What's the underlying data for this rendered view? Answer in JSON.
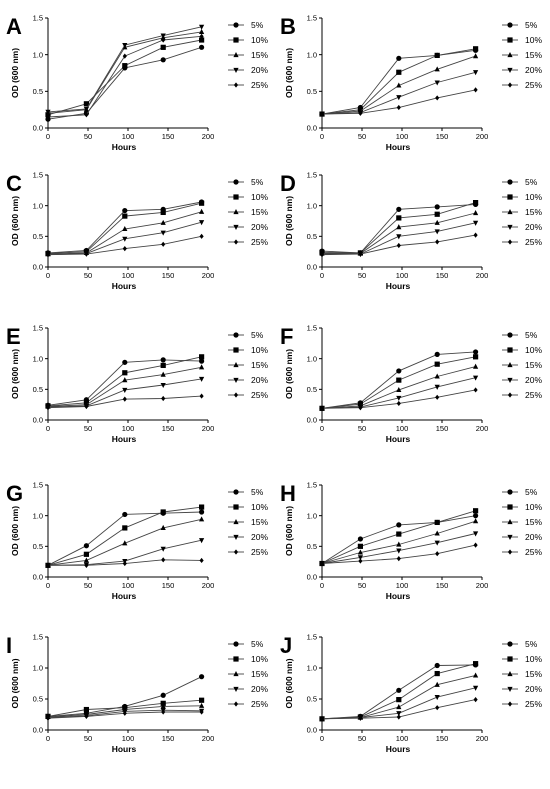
{
  "chart_data": [
    {
      "panel": "A",
      "type": "line",
      "xlabel": "Hours",
      "ylabel": "OD (600 nm)",
      "xlim": [
        0,
        200
      ],
      "ylim": [
        0,
        1.5
      ],
      "x_ticks": [
        "0",
        "50",
        "100",
        "150",
        "200"
      ],
      "y_ticks": [
        "0.0",
        "0.5",
        "1.0",
        "1.5"
      ],
      "x": [
        0,
        48,
        96,
        144,
        192
      ],
      "series": [
        {
          "name": "5%",
          "values": [
            0.12,
            0.2,
            0.82,
            0.93,
            1.1
          ]
        },
        {
          "name": "10%",
          "values": [
            0.18,
            0.33,
            0.85,
            1.1,
            1.2
          ]
        },
        {
          "name": "15%",
          "values": [
            0.2,
            0.25,
            1.1,
            1.23,
            1.31
          ]
        },
        {
          "name": "20%",
          "values": [
            0.22,
            0.26,
            1.13,
            1.26,
            1.38
          ]
        },
        {
          "name": "25%",
          "values": [
            0.15,
            0.18,
            0.98,
            1.2,
            1.25
          ]
        }
      ]
    },
    {
      "panel": "B",
      "type": "line",
      "xlabel": "Hours",
      "ylabel": "OD (600 nm)",
      "xlim": [
        0,
        200
      ],
      "ylim": [
        0,
        1.5
      ],
      "x_ticks": [
        "0",
        "50",
        "100",
        "150",
        "200"
      ],
      "y_ticks": [
        "0.0",
        "0.5",
        "1.0",
        "1.5"
      ],
      "x": [
        0,
        48,
        96,
        144,
        192
      ],
      "series": [
        {
          "name": "5%",
          "values": [
            0.19,
            0.28,
            0.95,
            0.99,
            1.06
          ]
        },
        {
          "name": "10%",
          "values": [
            0.19,
            0.25,
            0.76,
            0.99,
            1.08
          ]
        },
        {
          "name": "15%",
          "values": [
            0.19,
            0.23,
            0.58,
            0.8,
            0.98
          ]
        },
        {
          "name": "20%",
          "values": [
            0.19,
            0.21,
            0.42,
            0.62,
            0.76
          ]
        },
        {
          "name": "25%",
          "values": [
            0.19,
            0.2,
            0.28,
            0.41,
            0.52
          ]
        }
      ]
    },
    {
      "panel": "C",
      "type": "line",
      "xlabel": "Hours",
      "ylabel": "OD (600 nm)",
      "xlim": [
        0,
        200
      ],
      "ylim": [
        0,
        1.5
      ],
      "x_ticks": [
        "0",
        "50",
        "100",
        "150",
        "200"
      ],
      "y_ticks": [
        "0.0",
        "0.5",
        "1.0",
        "1.5"
      ],
      "x": [
        0,
        48,
        96,
        144,
        192
      ],
      "series": [
        {
          "name": "5%",
          "values": [
            0.23,
            0.27,
            0.92,
            0.94,
            1.06
          ]
        },
        {
          "name": "10%",
          "values": [
            0.22,
            0.25,
            0.83,
            0.89,
            1.04
          ]
        },
        {
          "name": "15%",
          "values": [
            0.21,
            0.23,
            0.62,
            0.72,
            0.9
          ]
        },
        {
          "name": "20%",
          "values": [
            0.2,
            0.22,
            0.46,
            0.56,
            0.73
          ]
        },
        {
          "name": "25%",
          "values": [
            0.2,
            0.21,
            0.3,
            0.37,
            0.5
          ]
        }
      ]
    },
    {
      "panel": "D",
      "type": "line",
      "xlabel": "Hours",
      "ylabel": "OD (600 nm)",
      "xlim": [
        0,
        200
      ],
      "ylim": [
        0,
        1.5
      ],
      "x_ticks": [
        "0",
        "50",
        "100",
        "150",
        "200"
      ],
      "y_ticks": [
        "0.0",
        "0.5",
        "1.0",
        "1.5"
      ],
      "x": [
        0,
        48,
        96,
        144,
        192
      ],
      "series": [
        {
          "name": "5%",
          "values": [
            0.26,
            0.23,
            0.94,
            0.98,
            1.02
          ]
        },
        {
          "name": "10%",
          "values": [
            0.24,
            0.23,
            0.8,
            0.86,
            1.05
          ]
        },
        {
          "name": "15%",
          "values": [
            0.22,
            0.22,
            0.65,
            0.72,
            0.88
          ]
        },
        {
          "name": "20%",
          "values": [
            0.21,
            0.21,
            0.5,
            0.58,
            0.72
          ]
        },
        {
          "name": "25%",
          "values": [
            0.2,
            0.21,
            0.35,
            0.41,
            0.52
          ]
        }
      ]
    },
    {
      "panel": "E",
      "type": "line",
      "xlabel": "Hours",
      "ylabel": "OD (600 nm)",
      "xlim": [
        0,
        200
      ],
      "ylim": [
        0,
        1.5
      ],
      "x_ticks": [
        "0",
        "50",
        "100",
        "150",
        "200"
      ],
      "y_ticks": [
        "0.0",
        "0.5",
        "1.0",
        "1.5"
      ],
      "x": [
        0,
        48,
        96,
        144,
        192
      ],
      "series": [
        {
          "name": "5%",
          "values": [
            0.24,
            0.33,
            0.94,
            0.98,
            0.96
          ]
        },
        {
          "name": "10%",
          "values": [
            0.23,
            0.28,
            0.77,
            0.89,
            1.03
          ]
        },
        {
          "name": "15%",
          "values": [
            0.22,
            0.25,
            0.65,
            0.74,
            0.86
          ]
        },
        {
          "name": "20%",
          "values": [
            0.21,
            0.23,
            0.49,
            0.57,
            0.67
          ]
        },
        {
          "name": "25%",
          "values": [
            0.2,
            0.22,
            0.34,
            0.35,
            0.39
          ]
        }
      ]
    },
    {
      "panel": "F",
      "type": "line",
      "xlabel": "Hours",
      "ylabel": "OD (600 nm)",
      "xlim": [
        0,
        200
      ],
      "ylim": [
        0,
        1.5
      ],
      "x_ticks": [
        "0",
        "50",
        "100",
        "150",
        "200"
      ],
      "y_ticks": [
        "0.0",
        "0.5",
        "1.0",
        "1.5"
      ],
      "x": [
        0,
        48,
        96,
        144,
        192
      ],
      "series": [
        {
          "name": "5%",
          "values": [
            0.19,
            0.28,
            0.8,
            1.07,
            1.11
          ]
        },
        {
          "name": "10%",
          "values": [
            0.19,
            0.26,
            0.65,
            0.91,
            1.03
          ]
        },
        {
          "name": "15%",
          "values": [
            0.19,
            0.23,
            0.49,
            0.71,
            0.87
          ]
        },
        {
          "name": "20%",
          "values": [
            0.19,
            0.21,
            0.36,
            0.54,
            0.69
          ]
        },
        {
          "name": "25%",
          "values": [
            0.19,
            0.2,
            0.27,
            0.37,
            0.49
          ]
        }
      ]
    },
    {
      "panel": "G",
      "type": "line",
      "xlabel": "Hours",
      "ylabel": "OD (600 nm)",
      "xlim": [
        0,
        200
      ],
      "ylim": [
        0,
        1.5
      ],
      "x_ticks": [
        "0",
        "50",
        "100",
        "150",
        "200"
      ],
      "y_ticks": [
        "0.0",
        "0.5",
        "1.0",
        "1.5"
      ],
      "x": [
        0,
        48,
        96,
        144,
        192
      ],
      "series": [
        {
          "name": "5%",
          "values": [
            0.19,
            0.51,
            1.02,
            1.04,
            1.06
          ]
        },
        {
          "name": "10%",
          "values": [
            0.19,
            0.37,
            0.8,
            1.06,
            1.14
          ]
        },
        {
          "name": "15%",
          "values": [
            0.19,
            0.27,
            0.55,
            0.8,
            0.94
          ]
        },
        {
          "name": "20%",
          "values": [
            0.19,
            0.2,
            0.26,
            0.46,
            0.6
          ]
        },
        {
          "name": "25%",
          "values": [
            0.19,
            0.19,
            0.22,
            0.28,
            0.27
          ]
        }
      ]
    },
    {
      "panel": "H",
      "type": "line",
      "xlabel": "Hours",
      "ylabel": "OD (600 nm)",
      "xlim": [
        0,
        200
      ],
      "ylim": [
        0,
        1.5
      ],
      "x_ticks": [
        "0",
        "50",
        "100",
        "150",
        "200"
      ],
      "y_ticks": [
        "0.0",
        "0.5",
        "1.0",
        "1.5"
      ],
      "x": [
        0,
        48,
        96,
        144,
        192
      ],
      "series": [
        {
          "name": "5%",
          "values": [
            0.22,
            0.62,
            0.85,
            0.89,
            1.0
          ]
        },
        {
          "name": "10%",
          "values": [
            0.22,
            0.5,
            0.7,
            0.89,
            1.08
          ]
        },
        {
          "name": "15%",
          "values": [
            0.22,
            0.4,
            0.53,
            0.71,
            0.91
          ]
        },
        {
          "name": "20%",
          "values": [
            0.22,
            0.32,
            0.43,
            0.56,
            0.71
          ]
        },
        {
          "name": "25%",
          "values": [
            0.22,
            0.26,
            0.3,
            0.38,
            0.52
          ]
        }
      ]
    },
    {
      "panel": "I",
      "type": "line",
      "xlabel": "Hours",
      "ylabel": "OD (600 nm)",
      "xlim": [
        0,
        200
      ],
      "ylim": [
        0,
        1.5
      ],
      "x_ticks": [
        "0",
        "50",
        "100",
        "150",
        "200"
      ],
      "y_ticks": [
        "0.0",
        "0.5",
        "1.0",
        "1.5"
      ],
      "x": [
        0,
        48,
        96,
        144,
        192
      ],
      "series": [
        {
          "name": "5%",
          "values": [
            0.22,
            0.27,
            0.38,
            0.56,
            0.86
          ]
        },
        {
          "name": "10%",
          "values": [
            0.22,
            0.33,
            0.36,
            0.43,
            0.48
          ]
        },
        {
          "name": "15%",
          "values": [
            0.21,
            0.25,
            0.33,
            0.38,
            0.39
          ]
        },
        {
          "name": "20%",
          "values": [
            0.2,
            0.23,
            0.3,
            0.32,
            0.31
          ]
        },
        {
          "name": "25%",
          "values": [
            0.19,
            0.22,
            0.27,
            0.29,
            0.29
          ]
        }
      ]
    },
    {
      "panel": "J",
      "type": "line",
      "xlabel": "Hours",
      "ylabel": "OD (600 nm)",
      "xlim": [
        0,
        200
      ],
      "ylim": [
        0,
        1.5
      ],
      "x_ticks": [
        "0",
        "50",
        "100",
        "150",
        "200"
      ],
      "y_ticks": [
        "0.0",
        "0.5",
        "1.0",
        "1.5"
      ],
      "x": [
        0,
        48,
        96,
        144,
        192
      ],
      "series": [
        {
          "name": "5%",
          "values": [
            0.18,
            0.22,
            0.64,
            1.04,
            1.05
          ]
        },
        {
          "name": "10%",
          "values": [
            0.18,
            0.21,
            0.49,
            0.91,
            1.07
          ]
        },
        {
          "name": "15%",
          "values": [
            0.18,
            0.2,
            0.37,
            0.73,
            0.88
          ]
        },
        {
          "name": "20%",
          "values": [
            0.18,
            0.2,
            0.27,
            0.53,
            0.68
          ]
        },
        {
          "name": "25%",
          "values": [
            0.18,
            0.19,
            0.21,
            0.36,
            0.49
          ]
        }
      ]
    }
  ]
}
